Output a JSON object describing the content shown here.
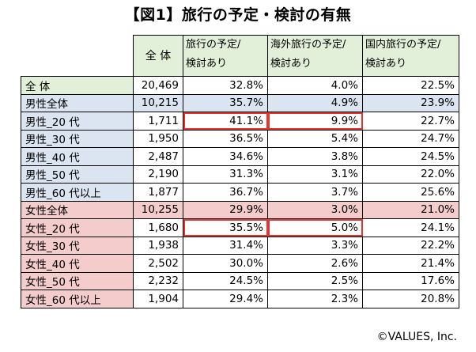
{
  "title": "【図1】旅行の予定・検討の有無",
  "credit": "©VALUES, Inc.",
  "headers": {
    "total": "全 体",
    "col2": [
      "旅行の予定/",
      "検討あり"
    ],
    "col3": [
      "海外旅行の予定/",
      "検討あり"
    ],
    "col4": [
      "国内旅行の予定/",
      "検討あり"
    ]
  },
  "rows": [
    {
      "label": "全 体",
      "total": "20,469",
      "travel": "32.8%",
      "overseas": "4.0%",
      "domestic": "22.5%"
    },
    {
      "label": "男性全体",
      "total": "10,215",
      "travel": "35.7%",
      "overseas": "4.9%",
      "domestic": "23.9%"
    },
    {
      "label": "男性_20 代",
      "total": "1,711",
      "travel": "41.1%",
      "overseas": "9.9%",
      "domestic": "22.7%"
    },
    {
      "label": "男性_30 代",
      "total": "1,950",
      "travel": "36.5%",
      "overseas": "5.4%",
      "domestic": "24.7%"
    },
    {
      "label": "男性_40 代",
      "total": "2,487",
      "travel": "34.6%",
      "overseas": "3.8%",
      "domestic": "24.5%"
    },
    {
      "label": "男性_50 代",
      "total": "2,190",
      "travel": "31.3%",
      "overseas": "3.1%",
      "domestic": "22.0%"
    },
    {
      "label": "男性_60 代以上",
      "total": "1,877",
      "travel": "36.7%",
      "overseas": "3.7%",
      "domestic": "25.6%"
    },
    {
      "label": "女性全体",
      "total": "10,255",
      "travel": "29.9%",
      "overseas": "3.0%",
      "domestic": "21.0%"
    },
    {
      "label": "女性_20 代",
      "total": "1,680",
      "travel": "35.5%",
      "overseas": "5.0%",
      "domestic": "24.1%"
    },
    {
      "label": "女性_30 代",
      "total": "1,938",
      "travel": "31.4%",
      "overseas": "3.3%",
      "domestic": "22.2%"
    },
    {
      "label": "女性_40 代",
      "total": "2,502",
      "travel": "30.0%",
      "overseas": "2.6%",
      "domestic": "21.4%"
    },
    {
      "label": "女性_50 代",
      "total": "2,232",
      "travel": "24.5%",
      "overseas": "2.5%",
      "domestic": "17.6%"
    },
    {
      "label": "女性_60 代以上",
      "total": "1,904",
      "travel": "29.4%",
      "overseas": "2.3%",
      "domestic": "20.8%"
    }
  ],
  "colors": {
    "header_bg": "#e2efd9",
    "male_bg": "#dbe5f1",
    "female_bg": "#f4cccc",
    "highlight_border": "#e8322d"
  }
}
